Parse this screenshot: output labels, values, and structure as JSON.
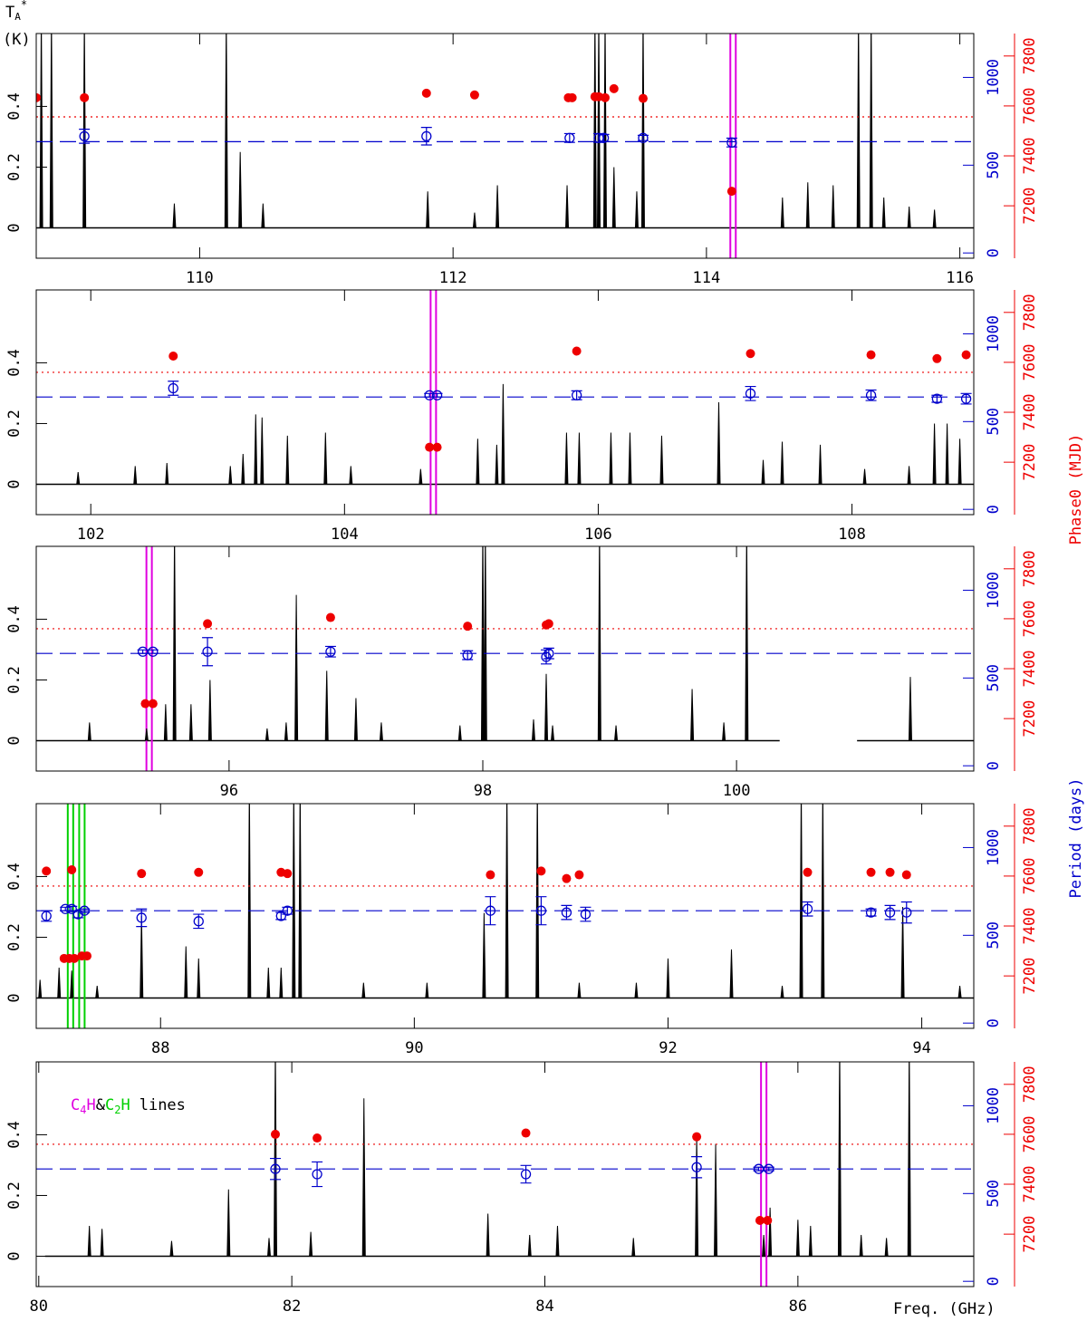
{
  "axis_labels": {
    "ta": {
      "base": "T",
      "sub": "A",
      "sup": "*"
    },
    "ta_unit": "(K)",
    "phase0": "Phase0 (MJD)",
    "period": "Period (days)",
    "freq": "Freq. (GHz)"
  },
  "legend": {
    "c4h": {
      "base": "C",
      "sub": "4",
      "end": "H"
    },
    "amp": "&",
    "c2h": {
      "base": "C",
      "sub": "2",
      "end": "H"
    },
    "lines": "lines"
  },
  "chart_data": [
    {
      "type": "spectrum",
      "xlim": [
        108.71,
        116.11
      ],
      "xticks": [
        110,
        112,
        114,
        116
      ],
      "ylim": [
        -0.1,
        0.64
      ],
      "yticks": [
        0,
        0.2,
        0.4
      ],
      "y2lim": [
        -30,
        1250
      ],
      "y2ticks": [
        0,
        500,
        1000
      ],
      "y3lim": [
        6990,
        7890
      ],
      "y3ticks": [
        7200,
        7400,
        7600,
        7800
      ],
      "coverage": [
        [
          108.71,
          116.11
        ]
      ],
      "lines": {
        "x": [
          108.75,
          108.83,
          109.09,
          109.8,
          110.21,
          110.32,
          110.5,
          111.8,
          112.17,
          112.35,
          112.9,
          113.12,
          113.15,
          113.2,
          113.27,
          113.45,
          113.5,
          114.6,
          114.8,
          115.0,
          115.2,
          115.3,
          115.4,
          115.6,
          115.8
        ],
        "values": [
          0.7,
          0.7,
          0.7,
          0.08,
          0.7,
          0.25,
          0.08,
          0.12,
          0.05,
          0.14,
          0.14,
          0.7,
          0.7,
          0.7,
          0.2,
          0.12,
          0.7,
          0.1,
          0.15,
          0.14,
          0.7,
          0.7,
          0.1,
          0.07,
          0.06
        ]
      },
      "phase0": {
        "x": [
          108.71,
          109.09,
          111.79,
          112.17,
          112.91,
          112.94,
          113.12,
          113.15,
          113.2,
          113.27,
          113.5,
          114.2
        ],
        "values": [
          7633,
          7633,
          7651,
          7644,
          7633,
          7633,
          7637,
          7637,
          7633,
          7669,
          7630,
          7258
        ]
      },
      "period": {
        "x": [
          109.09,
          111.79,
          112.92,
          113.15,
          113.19,
          113.5,
          114.2
        ],
        "values": [
          665,
          665,
          655,
          655,
          655,
          655,
          629
        ],
        "errors": [
          40,
          50,
          25,
          25,
          20,
          15,
          25
        ]
      },
      "period_ref": 634,
      "phase0_ref": 7556,
      "c4h": [
        114.21
      ],
      "c2h": []
    },
    {
      "type": "spectrum",
      "xlim": [
        101.57,
        108.96
      ],
      "xticks": [
        102,
        104,
        106,
        108
      ],
      "ylim": [
        -0.1,
        0.64
      ],
      "yticks": [
        0,
        0.2,
        0.4
      ],
      "y2lim": [
        -30,
        1250
      ],
      "y2ticks": [
        0,
        500,
        1000
      ],
      "y3lim": [
        6990,
        7890
      ],
      "y3ticks": [
        7200,
        7400,
        7600,
        7800
      ],
      "coverage": [
        [
          101.57,
          108.96
        ]
      ],
      "lines": {
        "x": [
          101.9,
          102.35,
          102.6,
          103.1,
          103.2,
          103.3,
          103.35,
          103.55,
          103.85,
          104.05,
          104.6,
          105.05,
          105.2,
          105.25,
          105.75,
          105.85,
          106.1,
          106.25,
          106.5,
          106.95,
          107.3,
          107.45,
          107.75,
          108.1,
          108.45,
          108.65,
          108.75,
          108.85
        ],
        "values": [
          0.04,
          0.06,
          0.07,
          0.06,
          0.1,
          0.23,
          0.22,
          0.16,
          0.17,
          0.06,
          0.05,
          0.15,
          0.13,
          0.33,
          0.17,
          0.17,
          0.17,
          0.17,
          0.16,
          0.27,
          0.08,
          0.14,
          0.13,
          0.05,
          0.06,
          0.2,
          0.2,
          0.15
        ]
      },
      "phase0": {
        "x": [
          102.65,
          104.67,
          104.73,
          105.83,
          107.2,
          108.15,
          108.67,
          108.9
        ],
        "values": [
          7625,
          7260,
          7260,
          7645,
          7635,
          7630,
          7615,
          7630
        ]
      },
      "period": {
        "x": [
          102.65,
          104.67,
          104.73,
          105.83,
          107.2,
          108.15,
          108.67,
          108.9
        ],
        "values": [
          690,
          650,
          650,
          650,
          660,
          650,
          630,
          630
        ],
        "errors": [
          40,
          10,
          10,
          25,
          40,
          30,
          20,
          30
        ]
      },
      "period_ref": 640,
      "phase0_ref": 7560,
      "c4h": [
        104.7
      ],
      "c2h": []
    },
    {
      "type": "spectrum",
      "xlim": [
        94.48,
        101.87
      ],
      "xticks": [
        96,
        98,
        100
      ],
      "ylim": [
        -0.1,
        0.64
      ],
      "yticks": [
        0,
        0.2,
        0.4
      ],
      "y2lim": [
        -30,
        1250
      ],
      "y2ticks": [
        0,
        500,
        1000
      ],
      "y3lim": [
        6990,
        7890
      ],
      "y3ticks": [
        7200,
        7400,
        7600,
        7800
      ],
      "coverage": [
        [
          94.48,
          100.34
        ],
        [
          100.95,
          101.87
        ]
      ],
      "lines": {
        "x": [
          94.9,
          95.35,
          95.5,
          95.57,
          95.7,
          95.85,
          96.3,
          96.45,
          96.53,
          96.77,
          97.0,
          97.2,
          97.82,
          98.0,
          98.02,
          98.4,
          98.5,
          98.55,
          98.92,
          99.05,
          99.65,
          99.9,
          100.08,
          101.37
        ],
        "values": [
          0.06,
          0.04,
          0.12,
          0.7,
          0.12,
          0.2,
          0.04,
          0.06,
          0.48,
          0.23,
          0.14,
          0.06,
          0.05,
          0.7,
          0.7,
          0.07,
          0.22,
          0.05,
          0.7,
          0.05,
          0.17,
          0.06,
          0.7,
          0.21
        ]
      },
      "phase0": {
        "x": [
          95.34,
          95.4,
          95.83,
          96.8,
          97.88,
          98.5,
          98.52
        ],
        "values": [
          7260,
          7260,
          7580,
          7605,
          7570,
          7575,
          7580
        ]
      },
      "period": {
        "x": [
          95.32,
          95.4,
          95.83,
          96.8,
          97.88,
          98.5,
          98.52
        ],
        "values": [
          650,
          650,
          650,
          650,
          630,
          620,
          640
        ],
        "errors": [
          10,
          10,
          80,
          30,
          25,
          40,
          30
        ]
      },
      "period_ref": 640,
      "phase0_ref": 7560,
      "c4h": [
        95.37
      ],
      "c2h": []
    },
    {
      "type": "spectrum",
      "xlim": [
        87.02,
        94.41
      ],
      "xticks": [
        88,
        90,
        92,
        94
      ],
      "ylim": [
        -0.1,
        0.64
      ],
      "yticks": [
        0,
        0.2,
        0.4
      ],
      "y2lim": [
        -30,
        1250
      ],
      "y2ticks": [
        0,
        500,
        1000
      ],
      "y3lim": [
        6990,
        7890
      ],
      "y3ticks": [
        7200,
        7400,
        7600,
        7800
      ],
      "coverage": [
        [
          87.02,
          94.41
        ]
      ],
      "lines": {
        "x": [
          87.05,
          87.2,
          87.3,
          87.5,
          87.85,
          88.2,
          88.3,
          88.7,
          88.85,
          88.95,
          89.05,
          89.1,
          89.6,
          90.1,
          90.55,
          90.73,
          90.97,
          91.3,
          91.75,
          92.0,
          92.5,
          92.9,
          93.05,
          93.22,
          93.85,
          94.3
        ],
        "values": [
          0.06,
          0.1,
          0.09,
          0.04,
          0.27,
          0.17,
          0.13,
          0.7,
          0.1,
          0.1,
          0.7,
          0.7,
          0.05,
          0.05,
          0.28,
          0.7,
          0.7,
          0.05,
          0.05,
          0.13,
          0.16,
          0.04,
          0.7,
          0.7,
          0.3,
          0.04
        ]
      },
      "phase0": {
        "x": [
          87.1,
          87.24,
          87.28,
          87.32,
          87.3,
          87.38,
          87.42,
          87.85,
          88.3,
          88.95,
          89.0,
          90.6,
          91.0,
          91.2,
          91.3,
          93.1,
          93.6,
          93.75,
          93.88
        ],
        "values": [
          7620,
          7270,
          7270,
          7270,
          7625,
          7280,
          7280,
          7610,
          7615,
          7615,
          7610,
          7605,
          7620,
          7590,
          7605,
          7615,
          7615,
          7615,
          7605
        ]
      },
      "period": {
        "x": [
          87.1,
          87.25,
          87.3,
          87.35,
          87.4,
          87.85,
          88.3,
          88.95,
          89.0,
          90.6,
          91.0,
          91.2,
          91.35,
          93.1,
          93.6,
          93.75,
          93.88
        ],
        "values": [
          610,
          650,
          650,
          620,
          640,
          600,
          580,
          610,
          640,
          640,
          640,
          630,
          620,
          650,
          630,
          630,
          630
        ],
        "errors": [
          30,
          10,
          15,
          20,
          10,
          50,
          40,
          20,
          20,
          80,
          80,
          40,
          40,
          40,
          20,
          40,
          60
        ]
      },
      "period_ref": 640,
      "phase0_ref": 7560,
      "c4h": [],
      "c2h": [
        87.29,
        87.38
      ]
    },
    {
      "type": "spectrum",
      "xlim": [
        79.98,
        87.39
      ],
      "xticks": [
        80,
        82,
        84,
        86
      ],
      "ylim": [
        -0.1,
        0.64
      ],
      "yticks": [
        0,
        0.2,
        0.4
      ],
      "y2lim": [
        -30,
        1250
      ],
      "y2ticks": [
        0,
        500,
        1000
      ],
      "y3lim": [
        6990,
        7890
      ],
      "y3ticks": [
        7200,
        7400,
        7600,
        7800
      ],
      "coverage": [
        [
          80.05,
          87.39
        ]
      ],
      "lines": {
        "x": [
          80.4,
          80.5,
          81.05,
          81.5,
          81.82,
          81.87,
          82.15,
          82.57,
          83.55,
          83.88,
          84.1,
          84.7,
          85.2,
          85.35,
          85.73,
          85.78,
          86.0,
          86.1,
          86.33,
          86.5,
          86.7,
          86.88
        ],
        "values": [
          0.1,
          0.09,
          0.05,
          0.22,
          0.06,
          0.7,
          0.08,
          0.52,
          0.14,
          0.07,
          0.1,
          0.06,
          0.4,
          0.37,
          0.07,
          0.16,
          0.12,
          0.1,
          0.7,
          0.07,
          0.06,
          0.7
        ]
      },
      "phase0": {
        "x": [
          81.87,
          82.2,
          83.85,
          85.2,
          85.7,
          85.76
        ],
        "values": [
          7600,
          7585,
          7605,
          7590,
          7255,
          7255
        ]
      },
      "period": {
        "x": [
          81.87,
          82.2,
          83.85,
          85.2,
          85.69,
          85.77
        ],
        "values": [
          640,
          610,
          610,
          650,
          640,
          640
        ],
        "errors": [
          60,
          70,
          50,
          60,
          10,
          10
        ]
      },
      "period_ref": 640,
      "phase0_ref": 7560,
      "c4h": [
        85.73
      ],
      "c2h": []
    }
  ]
}
